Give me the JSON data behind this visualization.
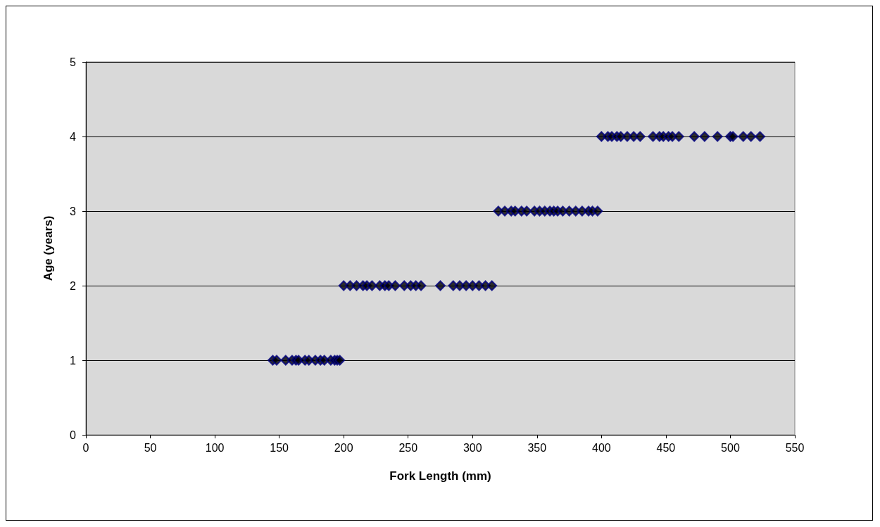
{
  "chart_data": {
    "type": "scatter",
    "xlabel": "Fork Length (mm)",
    "ylabel": "Age (years)",
    "marker": "diamond",
    "grid": "y",
    "xlim": [
      0,
      550
    ],
    "xticks": [
      0,
      50,
      100,
      150,
      200,
      250,
      300,
      350,
      400,
      450,
      500,
      550
    ],
    "ylim": [
      0,
      5
    ],
    "yticks": [
      0,
      1,
      2,
      3,
      4,
      5
    ],
    "series": [
      {
        "color": "#000080",
        "x": [
          145,
          148,
          155,
          160,
          163,
          165,
          170,
          173,
          178,
          182,
          185,
          190,
          193,
          195,
          197,
          200,
          205,
          210,
          215,
          218,
          222,
          228,
          232,
          235,
          240,
          247,
          252,
          256,
          260,
          275,
          285,
          290,
          295,
          300,
          305,
          310,
          315,
          320,
          325,
          330,
          333,
          338,
          342,
          348,
          352,
          356,
          360,
          363,
          366,
          370,
          375,
          380,
          385,
          390,
          393,
          397,
          400,
          405,
          408,
          412,
          415,
          420,
          425,
          430,
          440,
          445,
          448,
          452,
          455,
          460,
          472,
          480,
          490,
          500,
          502,
          510,
          516,
          523
        ],
        "values": [
          1,
          1,
          1,
          1,
          1,
          1,
          1,
          1,
          1,
          1,
          1,
          1,
          1,
          1,
          1,
          2,
          2,
          2,
          2,
          2,
          2,
          2,
          2,
          2,
          2,
          2,
          2,
          2,
          2,
          2,
          2,
          2,
          2,
          2,
          2,
          2,
          2,
          3,
          3,
          3,
          3,
          3,
          3,
          3,
          3,
          3,
          3,
          3,
          3,
          3,
          3,
          3,
          3,
          3,
          3,
          3,
          4,
          4,
          4,
          4,
          4,
          4,
          4,
          4,
          4,
          4,
          4,
          4,
          4,
          4,
          4,
          4,
          4,
          4,
          4,
          4,
          4,
          4
        ]
      }
    ]
  }
}
